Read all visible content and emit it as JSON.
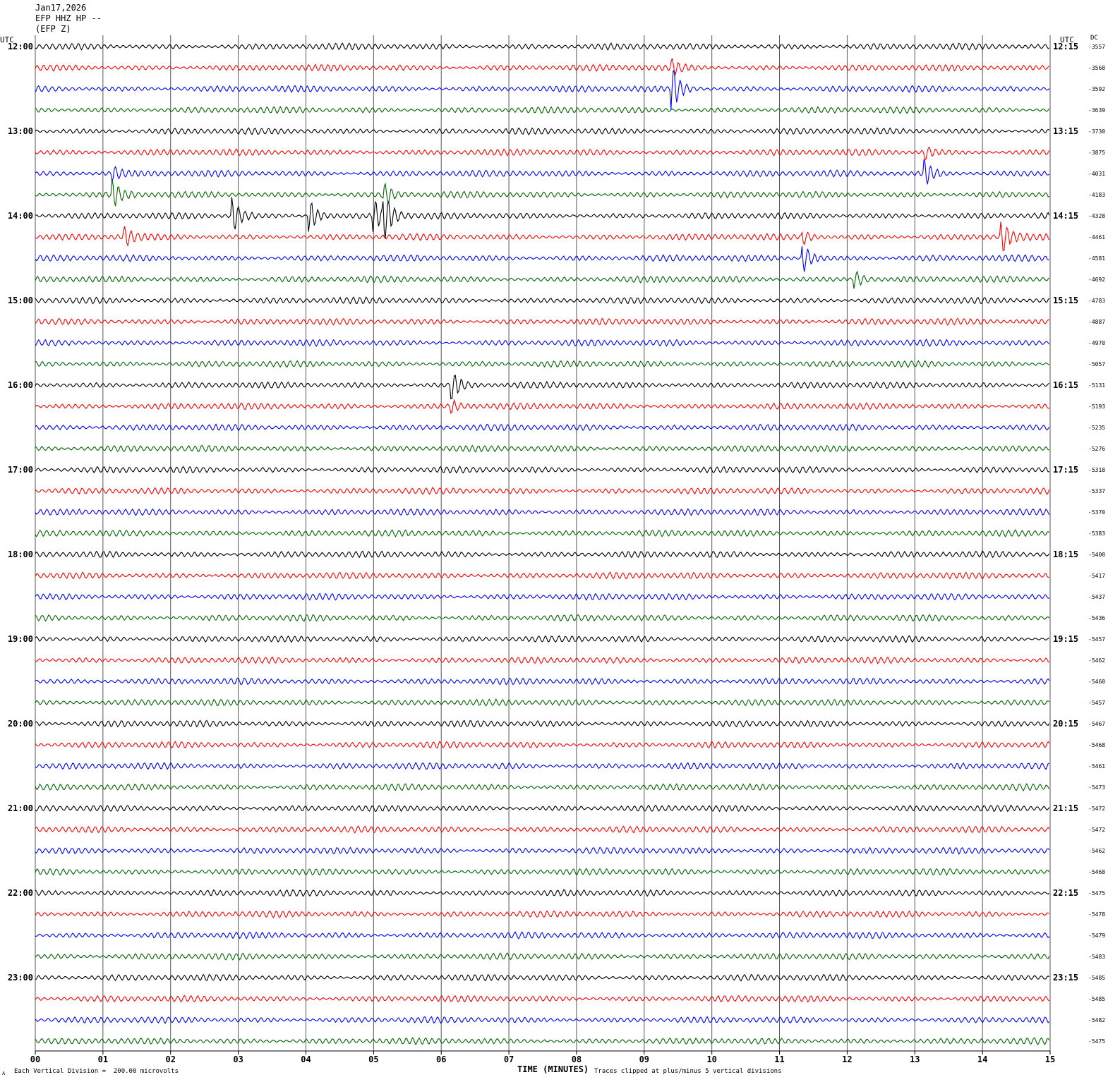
{
  "header": {
    "date": "Jan17,2026",
    "station": "EFP HHZ HP --",
    "channel": "(EFP Z)"
  },
  "utc_label_left": "UTC",
  "utc_label_right": "UTC",
  "dc_label": "DC",
  "footer": {
    "scale_note": "Each Vertical Division =  200.00 microvolts",
    "clip_note": "Traces clipped at plus/minus 5 vertical divisions",
    "corner_mark": "A"
  },
  "trace_colors": [
    "#000000",
    "#ff0000",
    "#0000ff",
    "#006400"
  ],
  "chart_data": {
    "type": "helicorder",
    "xlabel": "TIME (MINUTES)",
    "x_ticks": [
      "00",
      "01",
      "02",
      "03",
      "04",
      "05",
      "06",
      "07",
      "08",
      "09",
      "10",
      "11",
      "12",
      "13",
      "14",
      "15"
    ],
    "xlim": [
      0,
      15
    ],
    "minutes_per_line": 15,
    "left_time_labels": [
      "12:00",
      "13:00",
      "14:00",
      "15:00",
      "16:00",
      "17:00",
      "18:00",
      "19:00",
      "20:00",
      "21:00",
      "22:00",
      "23:00"
    ],
    "right_time_labels": [
      "12:15",
      "13:15",
      "14:15",
      "15:15",
      "16:15",
      "17:15",
      "18:15",
      "19:15",
      "20:15",
      "21:15",
      "22:15",
      "23:15"
    ],
    "dc_offsets": [
      -3557,
      -3568,
      -3592,
      -3639,
      -3730,
      -3875,
      -4031,
      -4183,
      -4328,
      -4461,
      -4581,
      -4692,
      -4783,
      -4887,
      -4970,
      -5057,
      -5131,
      -5193,
      -5235,
      -5276,
      -5318,
      -5337,
      -5370,
      -5383,
      -5400,
      -5417,
      -5437,
      -5436,
      -5457,
      -5462,
      -5460,
      -5457,
      -5467,
      -5468,
      -5461,
      -5473,
      -5472,
      -5472,
      -5462,
      -5468,
      -5475,
      -5478,
      -5479,
      -5483,
      -5485,
      -5485,
      -5482,
      -5475
    ],
    "events": [
      {
        "trace": 2,
        "minute": 9.42,
        "amplitude": 5
      },
      {
        "trace": 1,
        "minute": 9.42,
        "amplitude": 1.5
      },
      {
        "trace": 6,
        "minute": 13.15,
        "amplitude": 3
      },
      {
        "trace": 5,
        "minute": 13.15,
        "amplitude": 1.5
      },
      {
        "trace": 7,
        "minute": 1.15,
        "amplitude": 3
      },
      {
        "trace": 6,
        "minute": 1.15,
        "amplitude": 1.5
      },
      {
        "trace": 8,
        "minute": 2.92,
        "amplitude": 4
      },
      {
        "trace": 8,
        "minute": 4.07,
        "amplitude": 3.5
      },
      {
        "trace": 8,
        "minute": 5.02,
        "amplitude": 3.5
      },
      {
        "trace": 8,
        "minute": 5.16,
        "amplitude": 5
      },
      {
        "trace": 7,
        "minute": 5.16,
        "amplitude": 2.5
      },
      {
        "trace": 9,
        "minute": 1.33,
        "amplitude": 2
      },
      {
        "trace": 10,
        "minute": 11.35,
        "amplitude": 3.5
      },
      {
        "trace": 9,
        "minute": 11.35,
        "amplitude": 1.5
      },
      {
        "trace": 11,
        "minute": 12.13,
        "amplitude": 2
      },
      {
        "trace": 9,
        "minute": 14.3,
        "amplitude": 3.5
      },
      {
        "trace": 16,
        "minute": 6.17,
        "amplitude": 3
      },
      {
        "trace": 17,
        "minute": 6.17,
        "amplitude": 1.2
      }
    ]
  }
}
